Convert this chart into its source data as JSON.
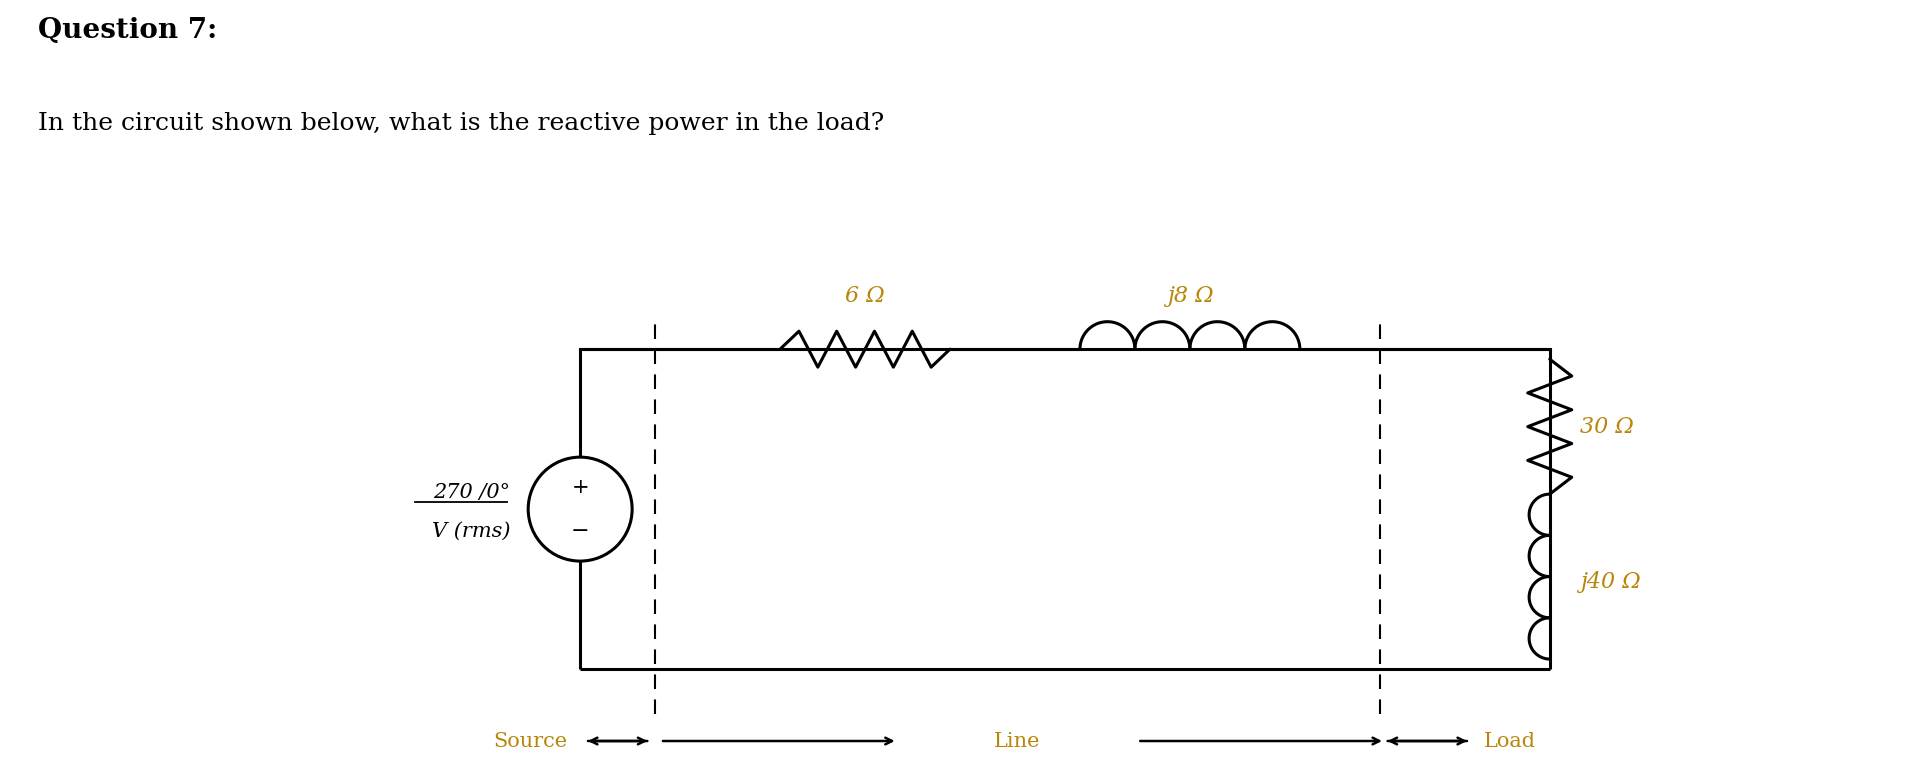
{
  "title": "Question 7:",
  "subtitle": "In the circuit shown below, what is the reactive power in the load?",
  "title_fontsize": 20,
  "subtitle_fontsize": 18,
  "bg_color": "#ffffff",
  "text_color": "#000000",
  "label_color": "#b8860b",
  "circuit_color": "#000000",
  "resistor_label": "6 Ω",
  "inductor_label": "j8 Ω",
  "load_r_label": "30 Ω",
  "load_l_label": "j40 Ω",
  "figsize": [
    19.16,
    7.69
  ],
  "dpi": 100
}
